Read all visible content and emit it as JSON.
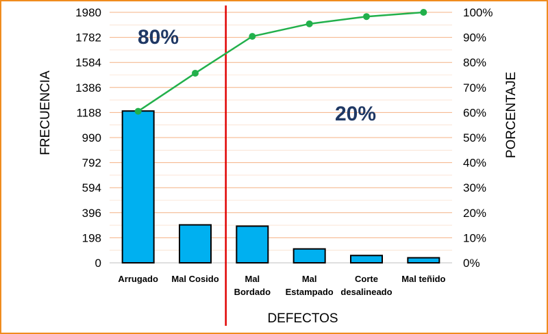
{
  "chart_data": {
    "type": "bar",
    "categories": [
      "Arrugado",
      "Mal Cosido",
      "Mal Bordado",
      "Mal Estampado",
      "Corte desalineado",
      "Mal teñido"
    ],
    "category_lines": [
      [
        "Arrugado"
      ],
      [
        "Mal Cosido"
      ],
      [
        "Mal",
        "Bordado"
      ],
      [
        "Mal",
        "Estampado"
      ],
      [
        "Corte",
        "desalineado"
      ],
      [
        "Mal teñido"
      ]
    ],
    "series": [
      {
        "name": "Frecuencia",
        "type": "bar",
        "axis": "left",
        "values": [
          1200,
          300,
          290,
          110,
          58,
          40
        ]
      },
      {
        "name": "Porcentaje",
        "type": "line",
        "axis": "right",
        "values": [
          60.5,
          75.7,
          90.4,
          95.4,
          98.3,
          100
        ]
      }
    ],
    "xlabel": "DEFECTOS",
    "ylabel": "FRECUENCIA",
    "y2label": "PORCENTAJE",
    "ylim": [
      0,
      1980
    ],
    "y2lim": [
      0,
      100
    ],
    "y_ticks": [
      "0",
      "198",
      "396",
      "594",
      "792",
      "990",
      "1188",
      "1386",
      "1584",
      "1782",
      "1980"
    ],
    "y2_ticks": [
      "0%",
      "10%",
      "20%",
      "30%",
      "40%",
      "50%",
      "60%",
      "70%",
      "80%",
      "90%",
      "100%"
    ],
    "annotations": [
      "80%",
      "20%"
    ],
    "divider_after_category": "Mal Cosido",
    "grid": true,
    "colors": {
      "bar": "#00b0f0",
      "bar_edge": "#000000",
      "line": "#22b04b",
      "grid": "#f4b183",
      "divider": "#e00000",
      "callout": "#1f3864",
      "frame": "#f08c1e"
    }
  }
}
